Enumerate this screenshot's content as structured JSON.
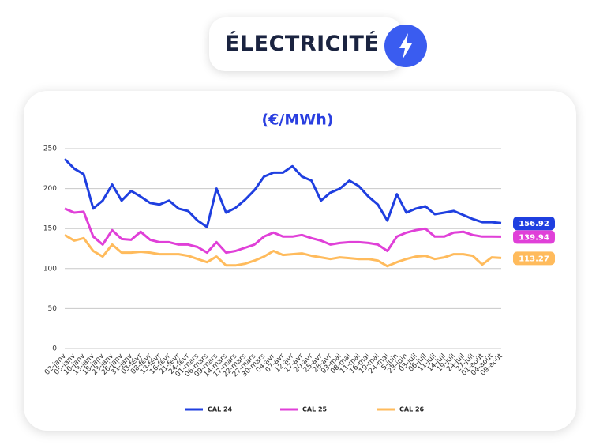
{
  "header": {
    "title": "ÉLECTRICITÉ"
  },
  "chart_data": {
    "type": "line",
    "title": "(€/MWh)",
    "categories": [
      "02-janv",
      "05-janv",
      "10-janv",
      "13-janv",
      "18-janv",
      "23-janv",
      "26-janv",
      "31-janv",
      "03-févr",
      "08-févr",
      "13-févr",
      "16-févr",
      "21-févr",
      "24-févr",
      "01-mars",
      "06-mars",
      "09-mars",
      "14-mars",
      "17-mars",
      "22-mars",
      "27-mars",
      "30-mars",
      "04-avr",
      "07-avr",
      "12-avr",
      "17-avr",
      "20-avr",
      "25-avr",
      "28-avr",
      "03-mai",
      "08-mai",
      "11-mai",
      "16-mai",
      "19-mai",
      "24-mai",
      "5-juin",
      "23-juin",
      "03-juil",
      "06-juil",
      "11-juil",
      "14-juil",
      "19-juil",
      "24-juil",
      "27-juil",
      "01-août",
      "04-août",
      "09-août"
    ],
    "series": [
      {
        "name": "CAL 24",
        "color": "#1f3fe0",
        "values": [
          237,
          225,
          218,
          175,
          185,
          205,
          185,
          197,
          190,
          182,
          180,
          185,
          175,
          172,
          160,
          152,
          200,
          170,
          176,
          186,
          198,
          215,
          220,
          220,
          228,
          215,
          210,
          185,
          195,
          200,
          210,
          203,
          190,
          180,
          160,
          193,
          170,
          175,
          178,
          168,
          170,
          172,
          167,
          162,
          158,
          158,
          156.92
        ]
      },
      {
        "name": "CAL 25",
        "color": "#e040d8",
        "values": [
          175,
          170,
          171,
          140,
          130,
          148,
          137,
          136,
          146,
          136,
          133,
          133,
          130,
          130,
          127,
          120,
          133,
          120,
          122,
          126,
          130,
          140,
          145,
          140,
          140,
          142,
          138,
          135,
          130,
          132,
          133,
          133,
          132,
          130,
          122,
          140,
          145,
          148,
          150,
          140,
          140,
          145,
          146,
          142,
          140,
          140,
          139.94
        ]
      },
      {
        "name": "CAL 26",
        "color": "#ffbb5c",
        "values": [
          142,
          135,
          138,
          122,
          115,
          130,
          120,
          120,
          121,
          120,
          118,
          118,
          118,
          116,
          112,
          108,
          115,
          104,
          104,
          106,
          110,
          115,
          122,
          117,
          118,
          119,
          116,
          114,
          112,
          114,
          113,
          112,
          112,
          110,
          103,
          108,
          112,
          115,
          116,
          112,
          114,
          118,
          118,
          116,
          105,
          114,
          113.27
        ]
      }
    ],
    "ylim": [
      0,
      250
    ],
    "yticks": [
      0,
      50,
      100,
      150,
      200,
      250
    ],
    "grid": true
  }
}
